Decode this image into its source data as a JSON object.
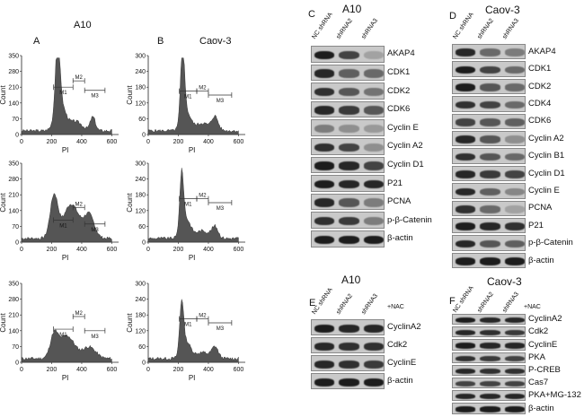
{
  "flow": {
    "panelA": {
      "letter": "A",
      "title": "A10"
    },
    "panelB": {
      "letter": "B",
      "title": "Caov-3"
    },
    "xlabel": "PI",
    "ylabel": "Count",
    "a_yticks": [
      "0",
      "70",
      "140",
      "210",
      "280",
      "350"
    ],
    "b_yticks": [
      "0",
      "60",
      "120",
      "180",
      "240",
      "300"
    ],
    "xticks": [
      "0",
      "200",
      "400",
      "600"
    ],
    "gates": [
      "M1",
      "M2",
      "M3"
    ]
  },
  "blotC": {
    "letter": "C",
    "title": "A10",
    "lanes": [
      "NC shRNA",
      "shRNA2",
      "shRNA3"
    ],
    "proteins": [
      "AKAP4",
      "CDK1",
      "CDK2",
      "CDK6",
      "Cyclin E",
      "Cyclin A2",
      "Cyclin D1",
      "P21",
      "PCNA",
      "p-β-Catenin",
      "β-actin"
    ]
  },
  "blotD": {
    "letter": "D",
    "title": "Caov-3",
    "lanes": [
      "NC shRNA",
      "shRNA2",
      "shRNA3"
    ],
    "proteins": [
      "AKAP4",
      "CDK1",
      "CDK2",
      "CDK4",
      "CDK6",
      "Cyclin A2",
      "Cyclin B1",
      "Cyclin D1",
      "Cyclin E",
      "PCNA",
      "P21",
      "p-β-Catenin",
      "β-actin"
    ]
  },
  "blotE": {
    "letter": "E",
    "title": "A10",
    "lanes": [
      "NC shRNA",
      "shRNA2",
      "shRNA3"
    ],
    "treatment": "+NAC",
    "proteins": [
      "CyclinA2",
      "Cdk2",
      "CyclinE",
      "β-actin"
    ]
  },
  "blotF": {
    "letter": "F",
    "title": "Caov-3",
    "lanes": [
      "NC shRNA",
      "shRNA2",
      "shRNA3"
    ],
    "treatment": "+NAC",
    "proteins": [
      "CyclinA2",
      "Cdk2",
      "CyclinE",
      "PKA",
      "P-CREB",
      "Cas7",
      "PKA+MG-132",
      "β-actin"
    ]
  }
}
